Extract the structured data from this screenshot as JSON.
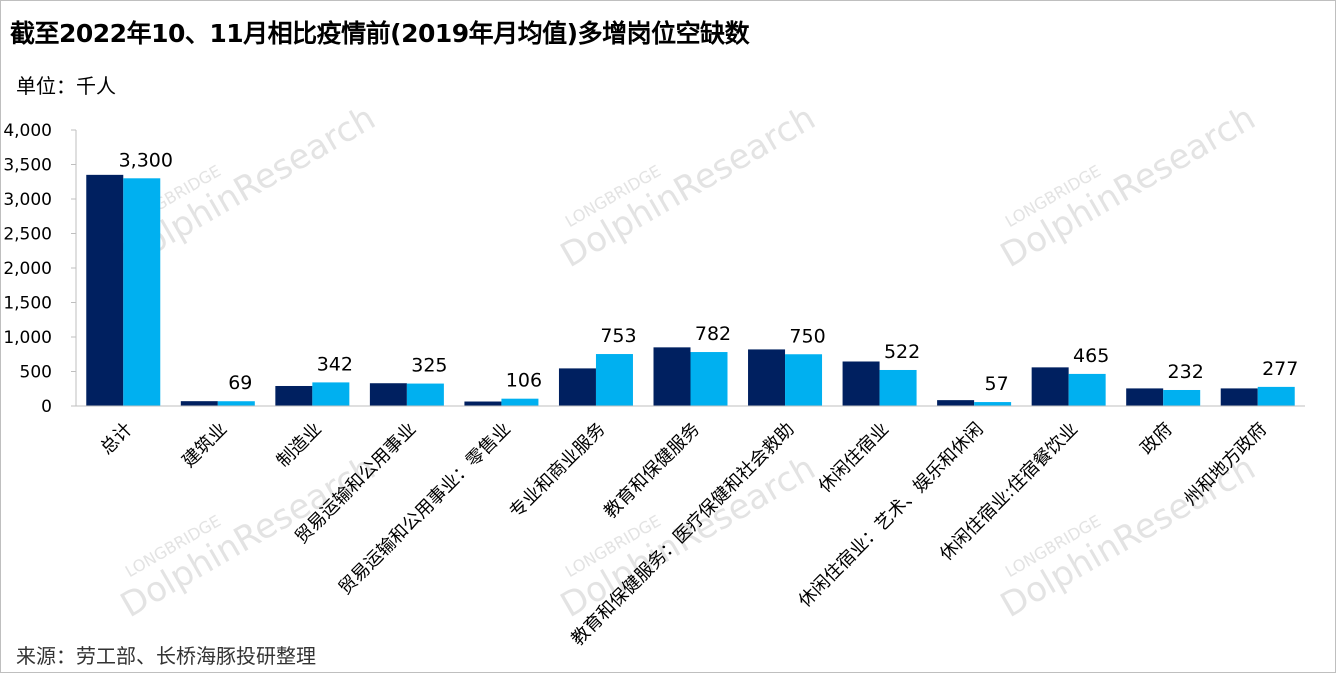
{
  "chart_data": {
    "type": "bar",
    "title": "截至2022年10、11月相比疫情前(2019年月均值)多增岗位空缺数",
    "ylabel": "单位：千人",
    "xlabel": "",
    "ylim": [
      0,
      4000
    ],
    "yticks": [
      0,
      500,
      1000,
      1500,
      2000,
      2500,
      3000,
      3500,
      4000
    ],
    "ytick_labels": [
      "0",
      "500",
      "1,000",
      "1,500",
      "2,000",
      "2,500",
      "3,000",
      "3,500",
      "4,000"
    ],
    "categories": [
      "总计",
      "建筑业",
      "制造业",
      "贸易运输和公用事业",
      "贸易运输和公用事业：零售业",
      "专业和商业服务",
      "教育和保健服务",
      "教育和保健服务：医疗保健和社会救助",
      "休闲住宿业",
      "休闲住宿业：艺术、娱乐和休闲",
      "休闲住宿业:住宿餐饮业",
      "政府",
      "州和地方政府"
    ],
    "series": [
      {
        "name": "series-1",
        "color": "#002060",
        "values": [
          3350,
          70,
          290,
          330,
          65,
          545,
          850,
          820,
          645,
          85,
          560,
          255,
          255
        ]
      },
      {
        "name": "series-2",
        "color": "#00b0f0",
        "values": [
          3300,
          69,
          342,
          325,
          106,
          753,
          782,
          750,
          522,
          57,
          465,
          232,
          277
        ],
        "data_labels": [
          "3,300",
          "69",
          "342",
          "325",
          "106",
          "753",
          "782",
          "750",
          "522",
          "57",
          "465",
          "232",
          "277"
        ]
      }
    ],
    "grid": false,
    "legend": "none"
  },
  "source": "来源：劳工部、长桥海豚投研整理",
  "watermark": {
    "brand": "LONGBRIDGE",
    "research": "DolphinResearch"
  }
}
